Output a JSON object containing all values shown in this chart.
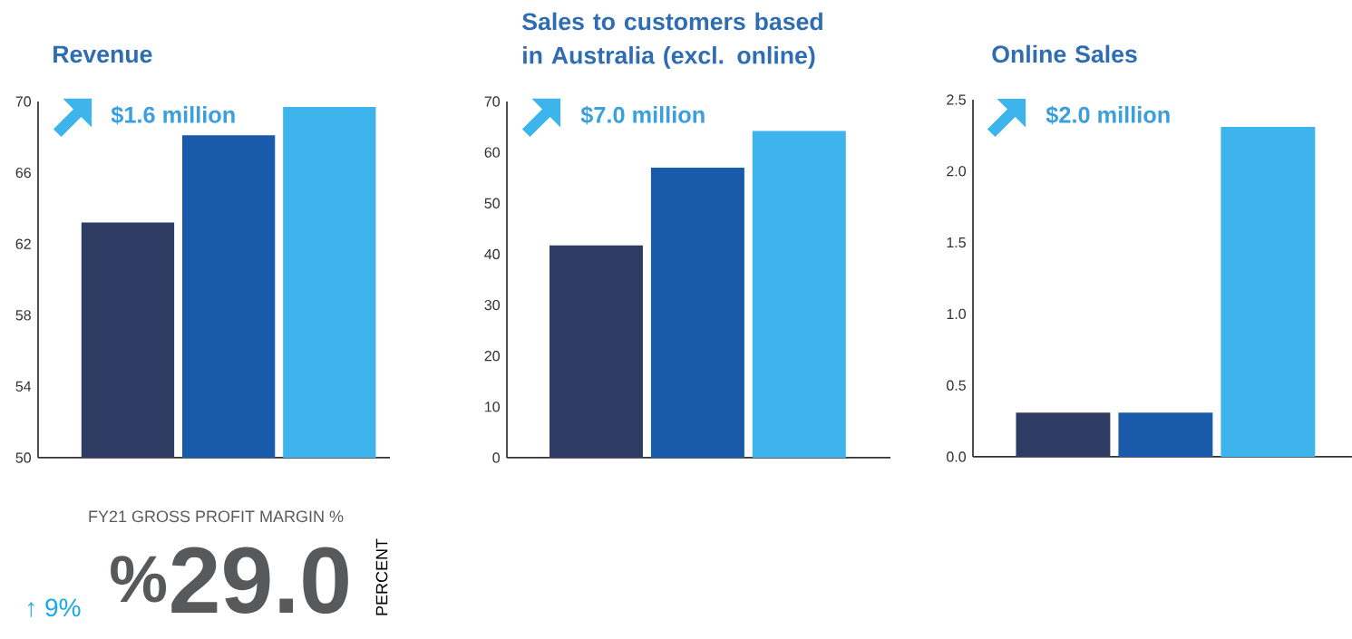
{
  "chart_data": [
    {
      "type": "bar",
      "title": "Revenue",
      "categories": [
        null,
        null,
        null
      ],
      "values": [
        63.2,
        68.1,
        69.7
      ],
      "colors": [
        "#2e3b63",
        "#1a5aab",
        "#3db5ec"
      ],
      "ylim": [
        50,
        70
      ],
      "yticks": [
        50,
        54,
        58,
        62,
        66,
        70
      ],
      "annotations": [
        "$1.6 million"
      ]
    },
    {
      "type": "bar",
      "title": "Sales to customers based in Australia (excl. online)",
      "categories": [
        null,
        null,
        null
      ],
      "values": [
        41.7,
        57.0,
        64.2
      ],
      "colors": [
        "#2e3b63",
        "#1a5aab",
        "#3db5ec"
      ],
      "ylim": [
        0,
        70
      ],
      "yticks": [
        0,
        10,
        20,
        30,
        40,
        50,
        60,
        70
      ],
      "annotations": [
        "$7.0 million"
      ]
    },
    {
      "type": "bar",
      "title": "Online Sales",
      "categories": [
        null,
        null,
        null
      ],
      "values": [
        0.31,
        0.31,
        2.31
      ],
      "colors": [
        "#2e3b63",
        "#1a5aab",
        "#3db5ec"
      ],
      "ylim": [
        0,
        2.5
      ],
      "yticks": [
        {
          "value": 0,
          "label": "0.0"
        },
        0.5,
        {
          "value": 1,
          "label": "1.0"
        },
        1.5,
        {
          "value": 2,
          "label": "2.0"
        },
        2.5
      ],
      "annotations": [
        "$2.0 million"
      ]
    },
    {
      "type": "other",
      "title": "FY21 GROSS PROFIT MARGIN %",
      "annotations": [
        "$^{%}$29.0",
        "PERCENT",
        "↑ 9%"
      ]
    }
  ]
}
